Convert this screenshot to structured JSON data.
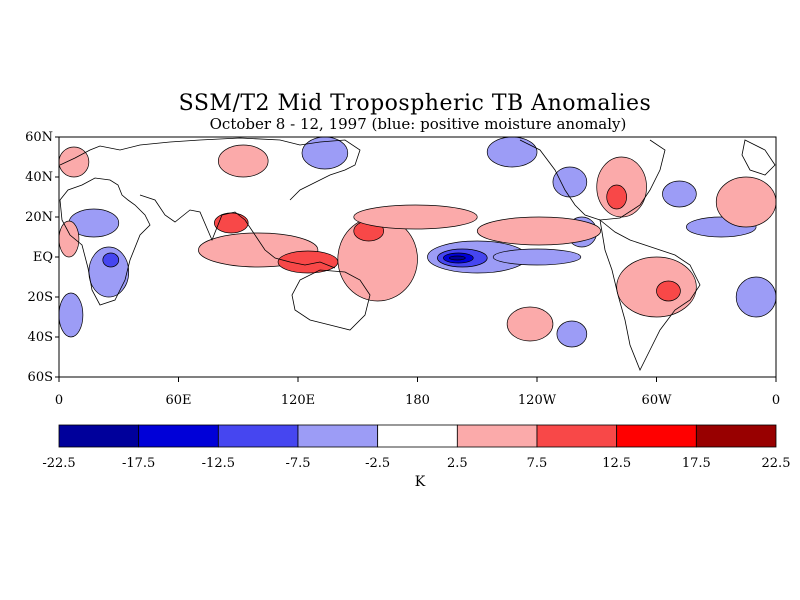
{
  "title": "SSM/T2 Mid Tropospheric TB Anomalies",
  "subtitle": "October 8 - 12, 1997 (blue: positive moisture anomaly)",
  "lat_labels": [
    "60N",
    "40N",
    "20N",
    "EQ",
    "20S",
    "40S",
    "60S"
  ],
  "lat_values": [
    60,
    40,
    20,
    0,
    -20,
    -40,
    -60
  ],
  "lon_labels": [
    "0",
    "60E",
    "120E",
    "180",
    "120W",
    "60W",
    "0"
  ],
  "lon_values": [
    0,
    60,
    120,
    180,
    240,
    300,
    360
  ],
  "colorbar": {
    "units": "K",
    "tick_labels": [
      "-22.5",
      "-17.5",
      "-12.5",
      "-7.5",
      "-2.5",
      "2.5",
      "7.5",
      "12.5",
      "17.5",
      "22.5"
    ],
    "colors": [
      "#00009b",
      "#0000d8",
      "#4646f0",
      "#9c9cf6",
      "#ffffff",
      "#fbaaaa",
      "#f84848",
      "#ff0000",
      "#980000"
    ]
  },
  "anomaly_regions": [
    {
      "level": -7.5,
      "lon": [
        185,
        235
      ],
      "lat": [
        -8,
        8
      ]
    },
    {
      "level": -12.5,
      "lon": [
        190,
        215
      ],
      "lat": [
        -5,
        4
      ]
    },
    {
      "level": -17.5,
      "lon": [
        193,
        208
      ],
      "lat": [
        -3,
        2
      ]
    },
    {
      "level": -22.5,
      "lon": [
        196,
        204
      ],
      "lat": [
        -1.5,
        0.5
      ]
    },
    {
      "level": -7.5,
      "lon": [
        218,
        262
      ],
      "lat": [
        -4,
        4
      ]
    },
    {
      "level": -7.5,
      "lon": [
        255,
        270
      ],
      "lat": [
        5,
        20
      ]
    },
    {
      "level": -7.5,
      "lon": [
        248,
        265
      ],
      "lat": [
        30,
        45
      ]
    },
    {
      "level": -7.5,
      "lon": [
        215,
        240
      ],
      "lat": [
        45,
        60
      ]
    },
    {
      "level": -7.5,
      "lon": [
        122,
        145
      ],
      "lat": [
        44,
        60
      ]
    },
    {
      "level": -7.5,
      "lon": [
        15,
        35
      ],
      "lat": [
        -20,
        5
      ]
    },
    {
      "level": -12.5,
      "lon": [
        22,
        30
      ],
      "lat": [
        -5,
        2
      ]
    },
    {
      "level": -7.5,
      "lon": [
        5,
        30
      ],
      "lat": [
        10,
        24
      ]
    },
    {
      "level": -7.5,
      "lon": [
        0,
        12
      ],
      "lat": [
        -40,
        -18
      ]
    },
    {
      "level": -7.5,
      "lon": [
        340,
        360
      ],
      "lat": [
        -30,
        -10
      ]
    },
    {
      "level": -7.5,
      "lon": [
        315,
        350
      ],
      "lat": [
        10,
        20
      ]
    },
    {
      "level": -7.5,
      "lon": [
        303,
        320
      ],
      "lat": [
        25,
        38
      ]
    },
    {
      "level": -7.5,
      "lon": [
        250,
        265
      ],
      "lat": [
        -45,
        -32
      ]
    },
    {
      "level": 2.5,
      "lon": [
        70,
        130
      ],
      "lat": [
        -5,
        12
      ]
    },
    {
      "level": 7.5,
      "lon": [
        110,
        140
      ],
      "lat": [
        -8,
        3
      ]
    },
    {
      "level": 7.5,
      "lon": [
        78,
        95
      ],
      "lat": [
        12,
        22
      ]
    },
    {
      "level": 2.5,
      "lon": [
        140,
        180
      ],
      "lat": [
        -22,
        20
      ]
    },
    {
      "level": 7.5,
      "lon": [
        148,
        163
      ],
      "lat": [
        8,
        18
      ]
    },
    {
      "level": 2.5,
      "lon": [
        148,
        210
      ],
      "lat": [
        14,
        26
      ]
    },
    {
      "level": 2.5,
      "lon": [
        210,
        272
      ],
      "lat": [
        6,
        20
      ]
    },
    {
      "level": 2.5,
      "lon": [
        270,
        295
      ],
      "lat": [
        20,
        50
      ]
    },
    {
      "level": 7.5,
      "lon": [
        275,
        285
      ],
      "lat": [
        24,
        36
      ]
    },
    {
      "level": 2.5,
      "lon": [
        280,
        320
      ],
      "lat": [
        -30,
        0
      ]
    },
    {
      "level": 7.5,
      "lon": [
        300,
        312
      ],
      "lat": [
        -22,
        -12
      ]
    },
    {
      "level": 2.5,
      "lon": [
        80,
        105
      ],
      "lat": [
        40,
        56
      ]
    },
    {
      "level": 2.5,
      "lon": [
        225,
        248
      ],
      "lat": [
        -42,
        -25
      ]
    },
    {
      "level": 2.5,
      "lon": [
        330,
        360
      ],
      "lat": [
        15,
        40
      ]
    },
    {
      "level": 2.5,
      "lon": [
        0,
        10
      ],
      "lat": [
        0,
        18
      ]
    },
    {
      "level": 2.5,
      "lon": [
        0,
        15
      ],
      "lat": [
        40,
        55
      ]
    }
  ]
}
